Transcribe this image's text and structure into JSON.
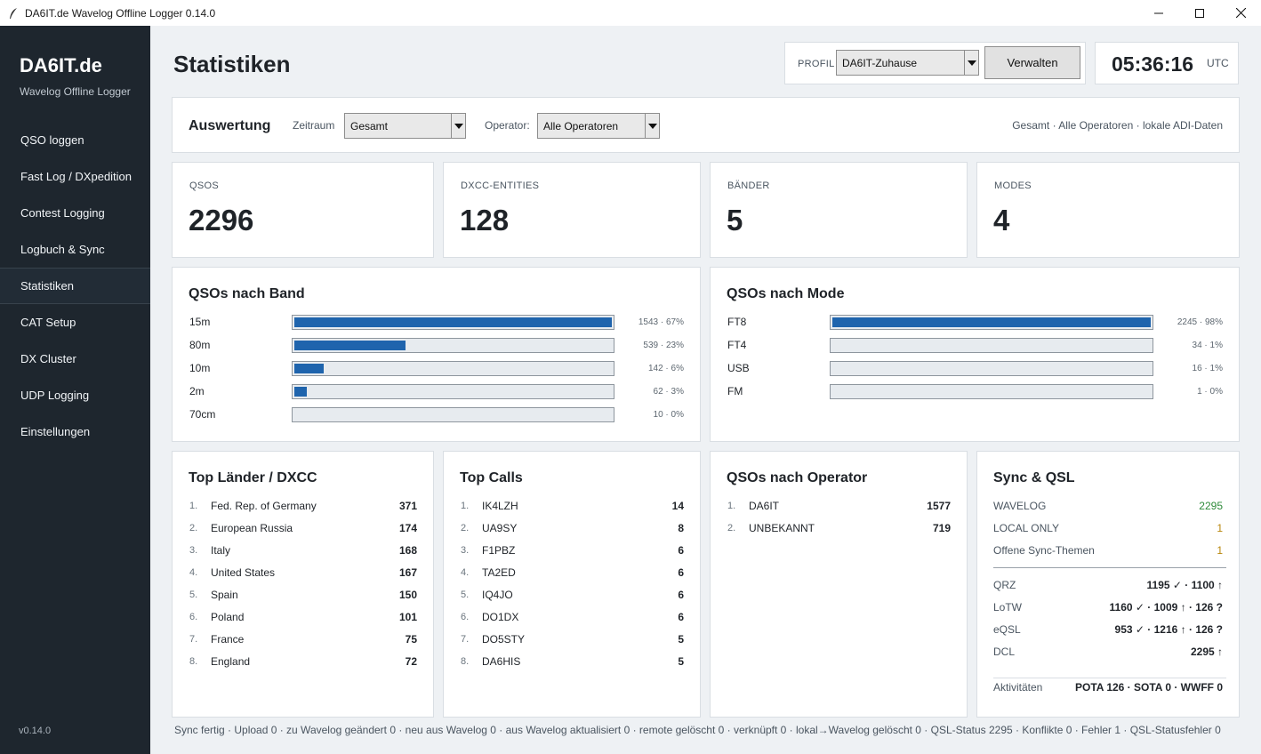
{
  "window": {
    "title": "DA6IT.de Wavelog Offline Logger 0.14.0"
  },
  "sidebar": {
    "brand": "DA6IT.de",
    "subtitle": "Wavelog Offline Logger",
    "items": [
      {
        "label": "QSO loggen"
      },
      {
        "label": "Fast Log / DXpedition"
      },
      {
        "label": "Contest Logging"
      },
      {
        "label": "Logbuch & Sync"
      },
      {
        "label": "Statistiken"
      },
      {
        "label": "CAT Setup"
      },
      {
        "label": "DX Cluster"
      },
      {
        "label": "UDP Logging"
      },
      {
        "label": "Einstellungen"
      }
    ],
    "active_index": 4,
    "version": "v0.14.0"
  },
  "header": {
    "page_title": "Statistiken",
    "profile_label": "PROFIL",
    "profile_value": "DA6IT-Zuhause",
    "manage_button": "Verwalten",
    "clock": "05:36:16",
    "timezone": "UTC"
  },
  "filter": {
    "title": "Auswertung",
    "period_label": "Zeitraum",
    "period_value": "Gesamt",
    "operator_label": "Operator:",
    "operator_value": "Alle Operatoren",
    "summary": "Gesamt · Alle Operatoren · lokale ADI-Daten"
  },
  "kpis": [
    {
      "label": "QSOS",
      "value": "2296"
    },
    {
      "label": "DXCC-ENTITIES",
      "value": "128"
    },
    {
      "label": "BÄNDER",
      "value": "5"
    },
    {
      "label": "MODES",
      "value": "4"
    }
  ],
  "bands": {
    "title": "QSOs nach Band",
    "rows": [
      {
        "label": "15m",
        "value": "1543 · 67%",
        "fraction": 1.0
      },
      {
        "label": "80m",
        "value": "539 · 23%",
        "fraction": 0.349
      },
      {
        "label": "10m",
        "value": "142 · 6%",
        "fraction": 0.092
      },
      {
        "label": "2m",
        "value": "62 · 3%",
        "fraction": 0.04
      },
      {
        "label": "70cm",
        "value": "10 · 0%",
        "fraction": 0.0
      }
    ]
  },
  "modes": {
    "title": "QSOs nach Mode",
    "rows": [
      {
        "label": "FT8",
        "value": "2245 · 98%",
        "fraction": 1.0
      },
      {
        "label": "FT4",
        "value": "34 · 1%",
        "fraction": 0.0
      },
      {
        "label": "USB",
        "value": "16 · 1%",
        "fraction": 0.0
      },
      {
        "label": "FM",
        "value": "1 · 0%",
        "fraction": 0.0
      }
    ]
  },
  "countries": {
    "title": "Top Länder / DXCC",
    "rows": [
      {
        "num": "1.",
        "name": "Fed. Rep. of Germany",
        "count": "371"
      },
      {
        "num": "2.",
        "name": "European Russia",
        "count": "174"
      },
      {
        "num": "3.",
        "name": "Italy",
        "count": "168"
      },
      {
        "num": "4.",
        "name": "United States",
        "count": "167"
      },
      {
        "num": "5.",
        "name": "Spain",
        "count": "150"
      },
      {
        "num": "6.",
        "name": "Poland",
        "count": "101"
      },
      {
        "num": "7.",
        "name": "France",
        "count": "75"
      },
      {
        "num": "8.",
        "name": "England",
        "count": "72"
      }
    ]
  },
  "calls": {
    "title": "Top Calls",
    "rows": [
      {
        "num": "1.",
        "name": "IK4LZH",
        "count": "14"
      },
      {
        "num": "2.",
        "name": "UA9SY",
        "count": "8"
      },
      {
        "num": "3.",
        "name": "F1PBZ",
        "count": "6"
      },
      {
        "num": "4.",
        "name": "TA2ED",
        "count": "6"
      },
      {
        "num": "5.",
        "name": "IQ4JO",
        "count": "6"
      },
      {
        "num": "6.",
        "name": "DO1DX",
        "count": "6"
      },
      {
        "num": "7.",
        "name": "DO5STY",
        "count": "5"
      },
      {
        "num": "8.",
        "name": "DA6HIS",
        "count": "5"
      }
    ]
  },
  "operators": {
    "title": "QSOs nach Operator",
    "rows": [
      {
        "num": "1.",
        "name": "DA6IT",
        "count": "1577"
      },
      {
        "num": "2.",
        "name": "UNBEKANNT",
        "count": "719"
      }
    ]
  },
  "sync": {
    "title": "Sync & QSL",
    "top": [
      {
        "key": "WAVELOG",
        "value": "2295",
        "color": "#2e8b3a"
      },
      {
        "key": "LOCAL ONLY",
        "value": "1",
        "color": "#b8860b"
      },
      {
        "key": "Offene Sync-Themen",
        "value": "1",
        "color": "#b8860b"
      }
    ],
    "qsl": [
      {
        "key": "QRZ",
        "value": "1195 ✓ · 1100 ↑"
      },
      {
        "key": "LoTW",
        "value": "1160 ✓ · 1009 ↑ · 126 ?"
      },
      {
        "key": "eQSL",
        "value": "953 ✓ · 1216 ↑ · 126 ?"
      },
      {
        "key": "DCL",
        "value": "2295 ↑"
      }
    ],
    "activities_label": "Aktivitäten",
    "activities_value": "POTA 126 · SOTA 0 · WWFF 0"
  },
  "status_bar": "Sync fertig · Upload 0 · zu Wavelog geändert 0 · neu aus Wavelog 0 · aus Wavelog aktualisiert 0 · remote gelöscht 0 · verknüpft 0 · lokal→Wavelog gelöscht 0 · QSL-Status 2295 · Konflikte 0 · Fehler 1 · QSL-Statusfehler 0"
}
